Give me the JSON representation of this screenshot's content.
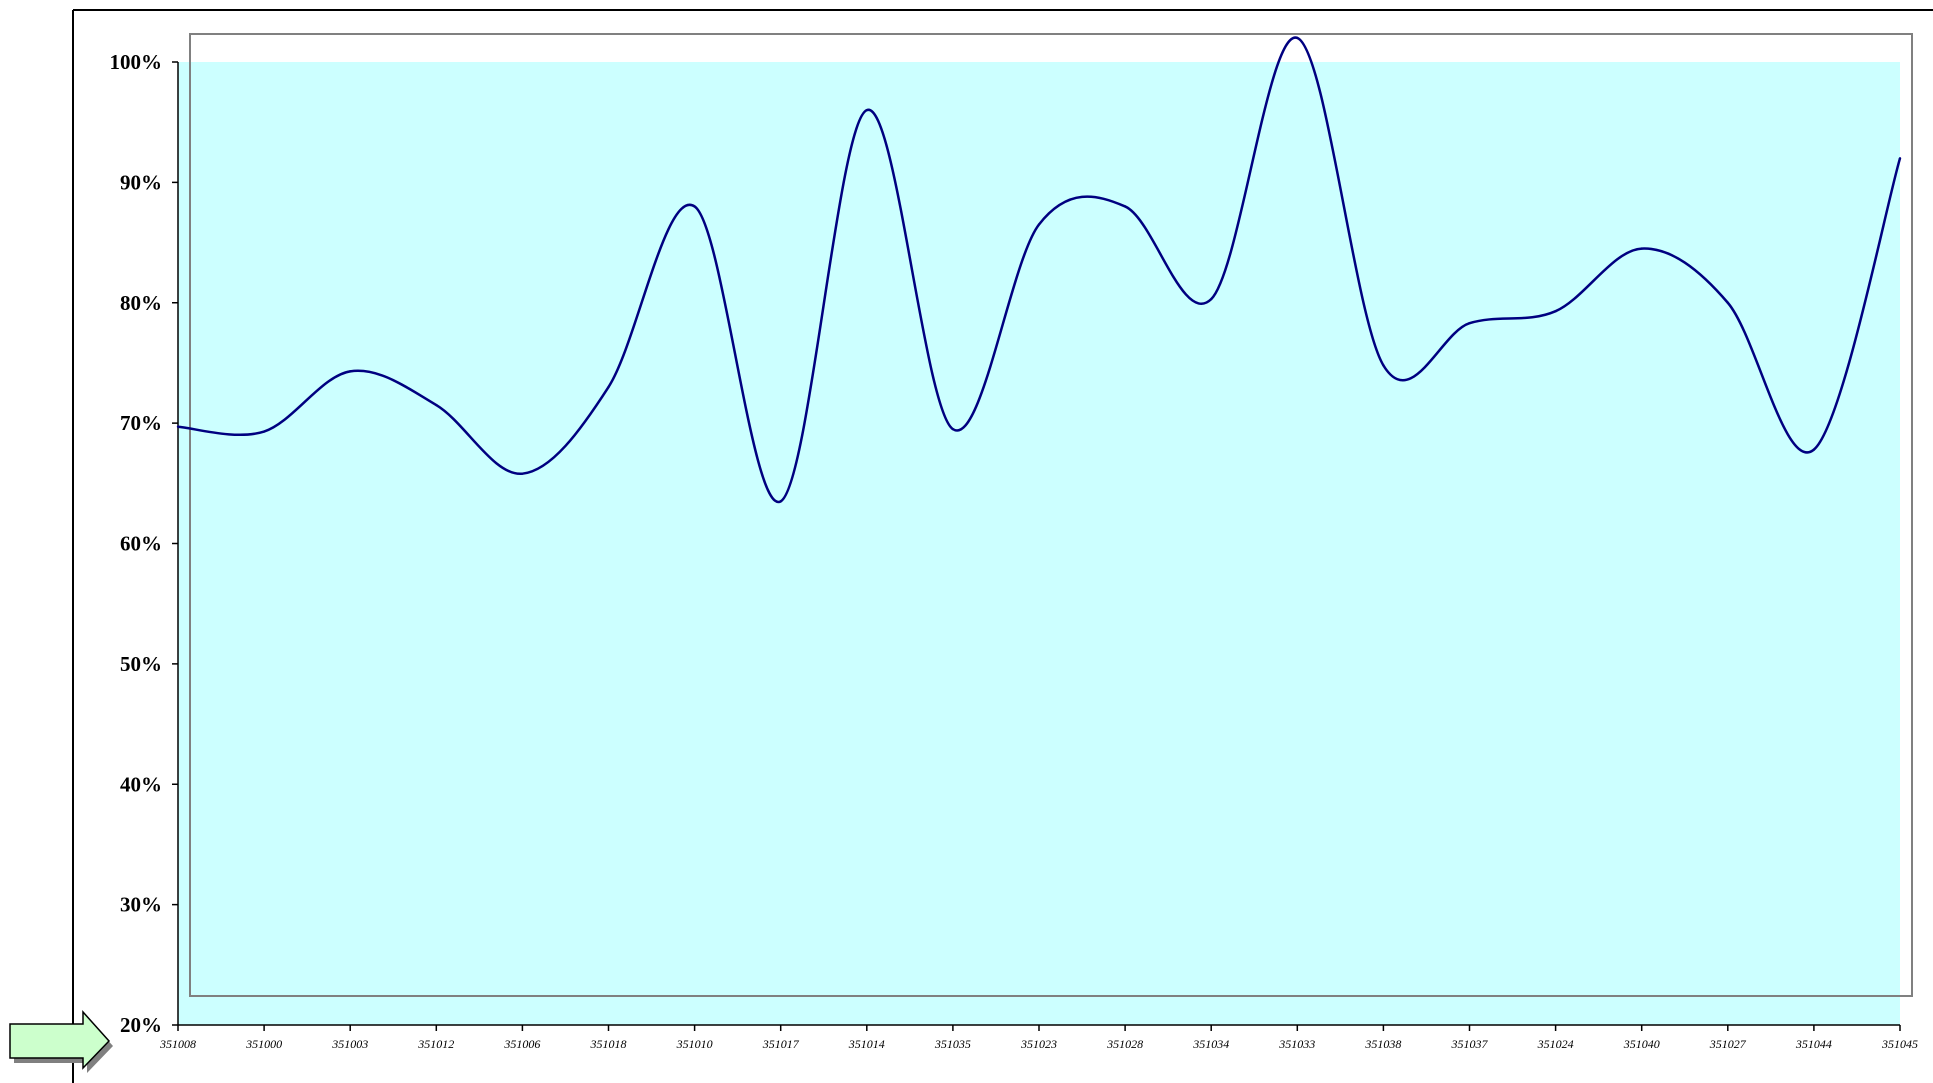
{
  "colors": {
    "plot_fill": "#CCFFFF",
    "series_line": "#000080",
    "axis": "#000000",
    "frame": "#808080",
    "arrow_fill": "#CCFFCC",
    "arrow_shadow": "#808080"
  },
  "decorations": {
    "arrow_icon": "right-arrow-icon"
  },
  "chart_data": {
    "type": "line",
    "smooth": true,
    "title": "",
    "xlabel": "",
    "ylabel": "",
    "ylim": [
      20,
      100
    ],
    "yticks": [
      20,
      30,
      40,
      50,
      60,
      70,
      80,
      90,
      100
    ],
    "ytick_format": "{v}%",
    "grid": false,
    "categories": [
      "351008",
      "351000",
      "351003",
      "351012",
      "351006",
      "351018",
      "351010",
      "351017",
      "351014",
      "351035",
      "351023",
      "351028",
      "351034",
      "351033",
      "351038",
      "351037",
      "351024",
      "351040",
      "351027",
      "351044",
      "351045"
    ],
    "series": [
      {
        "values": [
          69.7,
          69.3,
          74.3,
          71.5,
          65.8,
          73.0,
          88.0,
          63.5,
          96.0,
          69.5,
          86.5,
          88.0,
          80.3,
          102.0,
          74.8,
          78.3,
          79.3,
          84.5,
          80.0,
          67.8,
          92.0
        ]
      }
    ]
  }
}
